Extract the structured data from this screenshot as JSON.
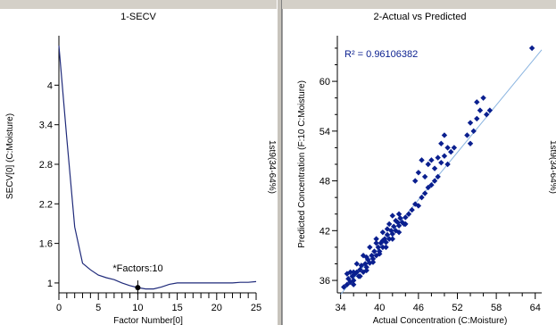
{
  "left_pane": {
    "title": "1-SECV",
    "side_label": "1st9(34-64%)",
    "annotation": "*Factors:10"
  },
  "right_pane": {
    "title": "2-Actual vs Predicted",
    "side_label": "1st9(34-64%)",
    "r2_label": "R² = 0.96106382"
  },
  "colors": {
    "line": "#1f2a7a",
    "points": "#0a1f8f",
    "fit_line": "#8ab4e0",
    "axis": "#000000"
  },
  "chart_data": [
    {
      "type": "line",
      "title": "1-SECV",
      "xlabel": "Factor Number[0]",
      "ylabel": "SECV[0] (C:Moisture)",
      "xlim": [
        0,
        25
      ],
      "ylim": [
        0.85,
        4.75
      ],
      "x_ticks": [
        0,
        5,
        10,
        15,
        20,
        25
      ],
      "y_ticks": [
        1,
        1.6,
        2.2,
        2.8,
        3.4,
        4
      ],
      "y_tick_labels": [
        "1",
        "1.6",
        "2.2",
        "2.8",
        "3.4",
        "4"
      ],
      "x": [
        0,
        1,
        2,
        3,
        4,
        5,
        6,
        7,
        8,
        9,
        10,
        11,
        12,
        13,
        14,
        15,
        16,
        17,
        18,
        19,
        20,
        21,
        22,
        23,
        24,
        25
      ],
      "y": [
        4.6,
        3.2,
        1.85,
        1.3,
        1.2,
        1.12,
        1.08,
        1.05,
        1.0,
        0.96,
        0.93,
        0.91,
        0.91,
        0.94,
        0.98,
        1.0,
        1.0,
        1.0,
        1.0,
        1.0,
        1.0,
        1.0,
        1.0,
        1.01,
        1.01,
        1.02
      ],
      "marker": {
        "x": 10,
        "y": 0.93
      }
    },
    {
      "type": "scatter",
      "title": "2-Actual vs Predicted",
      "xlabel": "Actual Concentration (C:Moisture)",
      "ylabel": "Predicted Concentration (F:10 C:Moisture)",
      "xlim": [
        33.5,
        65
      ],
      "ylim": [
        34.5,
        65.5
      ],
      "x_ticks": [
        34,
        40,
        46,
        52,
        58,
        64
      ],
      "y_ticks": [
        36,
        42,
        48,
        54,
        60
      ],
      "fit_line": [
        [
          34,
          34.3
        ],
        [
          65,
          63.8
        ]
      ],
      "points": [
        [
          34.5,
          35.2
        ],
        [
          35.0,
          35.5
        ],
        [
          35.2,
          36.2
        ],
        [
          35.5,
          35.8
        ],
        [
          35.8,
          36.5
        ],
        [
          36.0,
          36.0
        ],
        [
          36.2,
          36.8
        ],
        [
          36.5,
          37.0
        ],
        [
          36.8,
          36.5
        ],
        [
          37.0,
          37.3
        ],
        [
          37.2,
          37.8
        ],
        [
          37.5,
          37.0
        ],
        [
          37.8,
          38.0
        ],
        [
          38.0,
          37.6
        ],
        [
          38.2,
          38.5
        ],
        [
          38.5,
          38.1
        ],
        [
          38.8,
          39.0
        ],
        [
          39.0,
          38.6
        ],
        [
          39.2,
          39.5
        ],
        [
          39.5,
          39.0
        ],
        [
          39.8,
          40.0
        ],
        [
          40.0,
          39.5
        ],
        [
          40.2,
          40.5
        ],
        [
          40.5,
          40.0
        ],
        [
          40.8,
          41.0
        ],
        [
          41.0,
          40.6
        ],
        [
          41.2,
          41.5
        ],
        [
          41.5,
          41.0
        ],
        [
          41.8,
          42.0
        ],
        [
          42.0,
          41.6
        ],
        [
          42.2,
          42.5
        ],
        [
          42.5,
          42.0
        ],
        [
          42.8,
          43.0
        ],
        [
          43.0,
          42.6
        ],
        [
          43.2,
          43.5
        ],
        [
          43.5,
          43.0
        ],
        [
          43.8,
          42.8
        ],
        [
          44.0,
          43.6
        ],
        [
          40.5,
          41.8
        ],
        [
          41.5,
          42.8
        ],
        [
          42.0,
          43.8
        ],
        [
          43.0,
          44.0
        ],
        [
          39.5,
          41.0
        ],
        [
          38.5,
          40.0
        ],
        [
          37.5,
          39.0
        ],
        [
          36.5,
          38.0
        ],
        [
          36.0,
          37.0
        ],
        [
          35.5,
          37.0
        ],
        [
          37.0,
          36.5
        ],
        [
          38.0,
          37.2
        ],
        [
          39.0,
          38.2
        ],
        [
          40.0,
          39.2
        ],
        [
          41.0,
          40.0
        ],
        [
          42.0,
          41.0
        ],
        [
          43.0,
          41.8
        ],
        [
          44.0,
          42.8
        ],
        [
          44.5,
          44.0
        ],
        [
          45.0,
          44.5
        ],
        [
          45.5,
          45.2
        ],
        [
          46.0,
          45.0
        ],
        [
          46.5,
          46.0
        ],
        [
          47.0,
          46.5
        ],
        [
          47.5,
          47.2
        ],
        [
          48.0,
          47.5
        ],
        [
          48.5,
          48.0
        ],
        [
          49.0,
          48.5
        ],
        [
          47.0,
          48.5
        ],
        [
          47.5,
          50.0
        ],
        [
          48.0,
          50.5
        ],
        [
          48.5,
          49.5
        ],
        [
          49.0,
          50.8
        ],
        [
          49.5,
          50.2
        ],
        [
          50.0,
          51.0
        ],
        [
          50.5,
          50.0
        ],
        [
          51.0,
          51.5
        ],
        [
          51.5,
          52.0
        ],
        [
          46.0,
          49.0
        ],
        [
          46.5,
          50.5
        ],
        [
          45.5,
          48.0
        ],
        [
          49.5,
          52.5
        ],
        [
          50.0,
          53.5
        ],
        [
          50.5,
          52.0
        ],
        [
          53.5,
          53.5
        ],
        [
          54.0,
          55.0
        ],
        [
          54.5,
          54.0
        ],
        [
          55.0,
          55.5
        ],
        [
          55.5,
          56.5
        ],
        [
          55.0,
          57.5
        ],
        [
          56.0,
          58.0
        ],
        [
          56.5,
          56.0
        ],
        [
          57.0,
          56.5
        ],
        [
          54.0,
          52.5
        ],
        [
          63.5,
          64.0
        ],
        [
          36.0,
          35.5
        ],
        [
          35.0,
          36.8
        ],
        [
          38.0,
          38.8
        ],
        [
          39.5,
          40.5
        ],
        [
          40.5,
          40.8
        ],
        [
          41.2,
          42.2
        ],
        [
          42.5,
          43.2
        ]
      ]
    }
  ]
}
